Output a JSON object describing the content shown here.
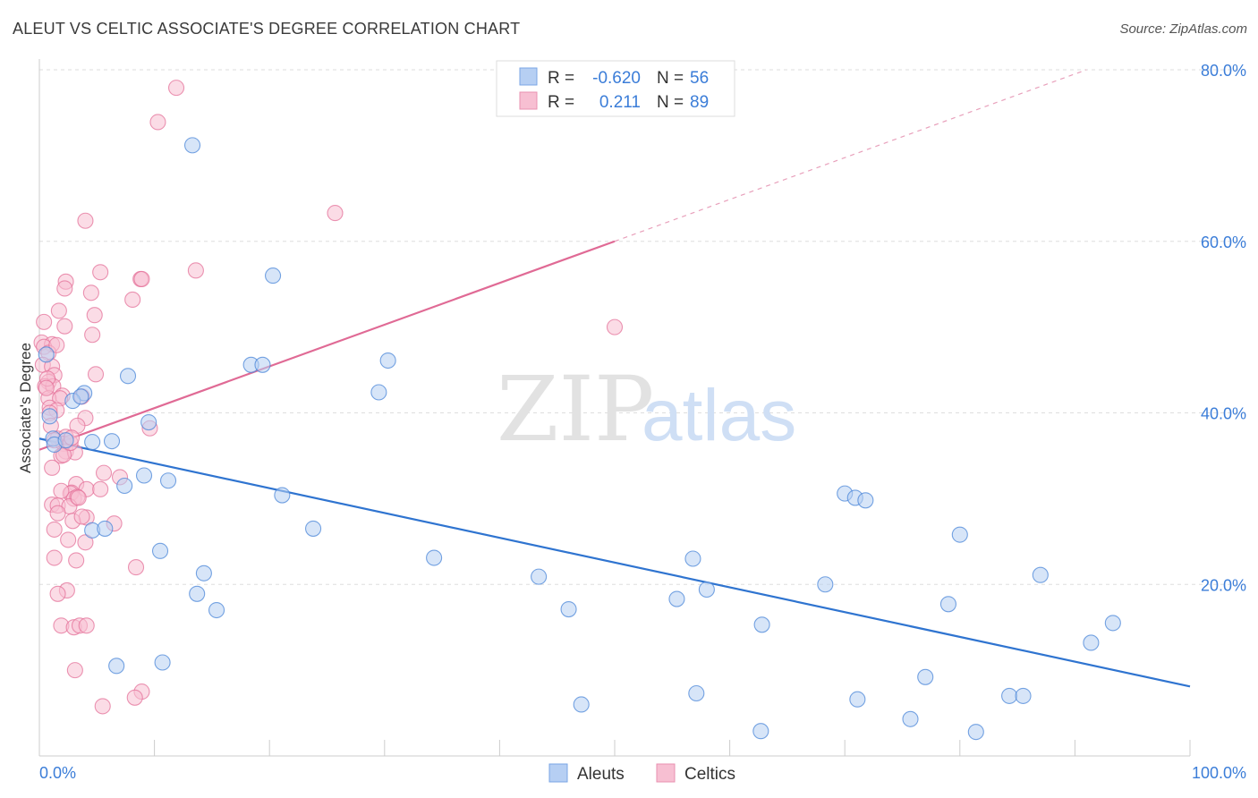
{
  "header": {
    "title": "ALEUT VS CELTIC ASSOCIATE'S DEGREE CORRELATION CHART",
    "source": "Source: ZipAtlas.com"
  },
  "watermark": {
    "zip": "ZIP",
    "atlas": "atlas"
  },
  "legend": {
    "rows": [
      {
        "r_label": "R =",
        "r_value": "-0.620",
        "n_label": "N =",
        "n_value": "56"
      },
      {
        "r_label": "R =",
        "r_value": "0.211",
        "n_label": "N =",
        "n_value": "89"
      }
    ]
  },
  "bottom_legend": {
    "items": [
      "Aleuts",
      "Celtics"
    ]
  },
  "chart_data": {
    "type": "scatter",
    "title": "ALEUT VS CELTIC ASSOCIATE'S DEGREE CORRELATION CHART",
    "xlabel": "",
    "ylabel": "Associate's Degree",
    "xlim": [
      0,
      100
    ],
    "ylim": [
      0,
      80
    ],
    "x_tick_labels": [
      "0.0%",
      "100.0%"
    ],
    "y_ticks": [
      20,
      40,
      60,
      80
    ],
    "y_tick_labels": [
      "20.0%",
      "40.0%",
      "60.0%",
      "80.0%"
    ],
    "grid": true,
    "colors": {
      "aleuts": "#4a86d8",
      "aleuts_fill": "#b6cff3",
      "celtics": "#e4719a",
      "celtics_fill": "#f7bfd2",
      "accent_text": "#3b7dd8"
    },
    "series": [
      {
        "name": "Aleuts",
        "r": -0.62,
        "n": 56,
        "trend": {
          "x": [
            0,
            100
          ],
          "y": [
            37.0,
            8.1
          ]
        },
        "points": [
          [
            13.3,
            71.2
          ],
          [
            20.3,
            56.0
          ],
          [
            30.3,
            46.1
          ],
          [
            18.4,
            45.6
          ],
          [
            19.4,
            45.6
          ],
          [
            7.7,
            44.3
          ],
          [
            29.5,
            42.4
          ],
          [
            3.9,
            42.3
          ],
          [
            2.9,
            41.4
          ],
          [
            3.6,
            41.9
          ],
          [
            0.9,
            39.6
          ],
          [
            9.5,
            38.9
          ],
          [
            1.2,
            37.0
          ],
          [
            4.6,
            36.6
          ],
          [
            6.3,
            36.7
          ],
          [
            9.1,
            32.7
          ],
          [
            11.2,
            32.1
          ],
          [
            7.4,
            31.5
          ],
          [
            21.1,
            30.4
          ],
          [
            23.8,
            26.5
          ],
          [
            4.6,
            26.3
          ],
          [
            5.7,
            26.5
          ],
          [
            10.5,
            23.9
          ],
          [
            14.3,
            21.3
          ],
          [
            13.7,
            18.9
          ],
          [
            15.4,
            17.0
          ],
          [
            34.3,
            23.1
          ],
          [
            43.4,
            20.9
          ],
          [
            46.0,
            17.1
          ],
          [
            55.4,
            18.3
          ],
          [
            56.8,
            23.0
          ],
          [
            58.0,
            19.4
          ],
          [
            68.3,
            20.0
          ],
          [
            70.0,
            30.6
          ],
          [
            70.9,
            30.1
          ],
          [
            71.8,
            29.8
          ],
          [
            80.0,
            25.8
          ],
          [
            79.0,
            17.7
          ],
          [
            87.0,
            21.1
          ],
          [
            62.8,
            15.3
          ],
          [
            93.3,
            15.5
          ],
          [
            91.4,
            13.2
          ],
          [
            6.7,
            10.5
          ],
          [
            10.7,
            10.9
          ],
          [
            47.1,
            6.0
          ],
          [
            57.1,
            7.3
          ],
          [
            71.1,
            6.6
          ],
          [
            77.0,
            9.2
          ],
          [
            84.3,
            7.0
          ],
          [
            85.5,
            7.0
          ],
          [
            75.7,
            4.3
          ],
          [
            62.7,
            2.9
          ],
          [
            81.4,
            2.8
          ],
          [
            1.3,
            36.3
          ],
          [
            2.3,
            36.8
          ],
          [
            0.6,
            46.8
          ]
        ]
      },
      {
        "name": "Celtics",
        "r": 0.211,
        "n": 89,
        "trend": {
          "x": [
            0,
            50
          ],
          "y": [
            35.7,
            60.0
          ]
        },
        "trend_extension": {
          "x": [
            50,
            91
          ],
          "y": [
            60.0,
            80.0
          ]
        },
        "points": [
          [
            11.9,
            77.9
          ],
          [
            10.3,
            73.9
          ],
          [
            25.7,
            63.3
          ],
          [
            4.0,
            62.4
          ],
          [
            13.6,
            56.6
          ],
          [
            5.3,
            56.4
          ],
          [
            8.8,
            55.6
          ],
          [
            8.9,
            55.6
          ],
          [
            2.3,
            55.3
          ],
          [
            2.2,
            54.5
          ],
          [
            4.5,
            54.0
          ],
          [
            8.1,
            53.2
          ],
          [
            1.7,
            51.9
          ],
          [
            0.4,
            50.6
          ],
          [
            4.8,
            51.4
          ],
          [
            50.0,
            50.0
          ],
          [
            2.2,
            50.1
          ],
          [
            4.6,
            49.1
          ],
          [
            0.2,
            48.2
          ],
          [
            1.1,
            48.0
          ],
          [
            0.4,
            47.7
          ],
          [
            0.8,
            47.0
          ],
          [
            1.5,
            47.9
          ],
          [
            0.3,
            45.6
          ],
          [
            1.1,
            45.4
          ],
          [
            1.3,
            44.4
          ],
          [
            4.9,
            44.5
          ],
          [
            0.8,
            43.6
          ],
          [
            0.5,
            43.1
          ],
          [
            1.2,
            43.1
          ],
          [
            2.0,
            42.0
          ],
          [
            0.8,
            41.7
          ],
          [
            1.8,
            41.7
          ],
          [
            3.7,
            41.9
          ],
          [
            0.9,
            40.6
          ],
          [
            1.5,
            40.3
          ],
          [
            0.9,
            40.0
          ],
          [
            4.0,
            39.4
          ],
          [
            1.0,
            38.5
          ],
          [
            9.6,
            38.2
          ],
          [
            1.6,
            37.0
          ],
          [
            2.3,
            37.2
          ],
          [
            2.1,
            36.4
          ],
          [
            1.3,
            36.8
          ],
          [
            2.3,
            35.5
          ],
          [
            1.9,
            35.0
          ],
          [
            3.1,
            35.4
          ],
          [
            1.1,
            33.6
          ],
          [
            5.6,
            33.0
          ],
          [
            7.0,
            32.5
          ],
          [
            3.2,
            31.7
          ],
          [
            4.1,
            31.1
          ],
          [
            5.3,
            31.1
          ],
          [
            2.8,
            30.7
          ],
          [
            2.7,
            30.6
          ],
          [
            3.0,
            30.0
          ],
          [
            3.3,
            30.2
          ],
          [
            1.1,
            29.3
          ],
          [
            1.6,
            29.2
          ],
          [
            2.6,
            29.1
          ],
          [
            3.4,
            30.1
          ],
          [
            4.1,
            27.8
          ],
          [
            2.9,
            27.4
          ],
          [
            1.6,
            28.3
          ],
          [
            6.5,
            27.1
          ],
          [
            1.3,
            26.4
          ],
          [
            2.5,
            25.2
          ],
          [
            4.0,
            24.9
          ],
          [
            1.3,
            23.1
          ],
          [
            3.2,
            22.8
          ],
          [
            8.4,
            22.0
          ],
          [
            2.4,
            19.3
          ],
          [
            1.6,
            18.9
          ],
          [
            1.9,
            15.2
          ],
          [
            3.0,
            15.0
          ],
          [
            3.5,
            15.2
          ],
          [
            4.1,
            15.2
          ],
          [
            3.1,
            10.0
          ],
          [
            8.9,
            7.5
          ],
          [
            8.3,
            6.8
          ],
          [
            5.5,
            5.8
          ],
          [
            2.1,
            35.1
          ],
          [
            3.3,
            38.5
          ],
          [
            2.7,
            36.5
          ],
          [
            0.7,
            44.0
          ],
          [
            1.9,
            30.9
          ],
          [
            3.7,
            27.9
          ],
          [
            0.6,
            42.9
          ],
          [
            2.8,
            37.1
          ]
        ]
      }
    ]
  }
}
